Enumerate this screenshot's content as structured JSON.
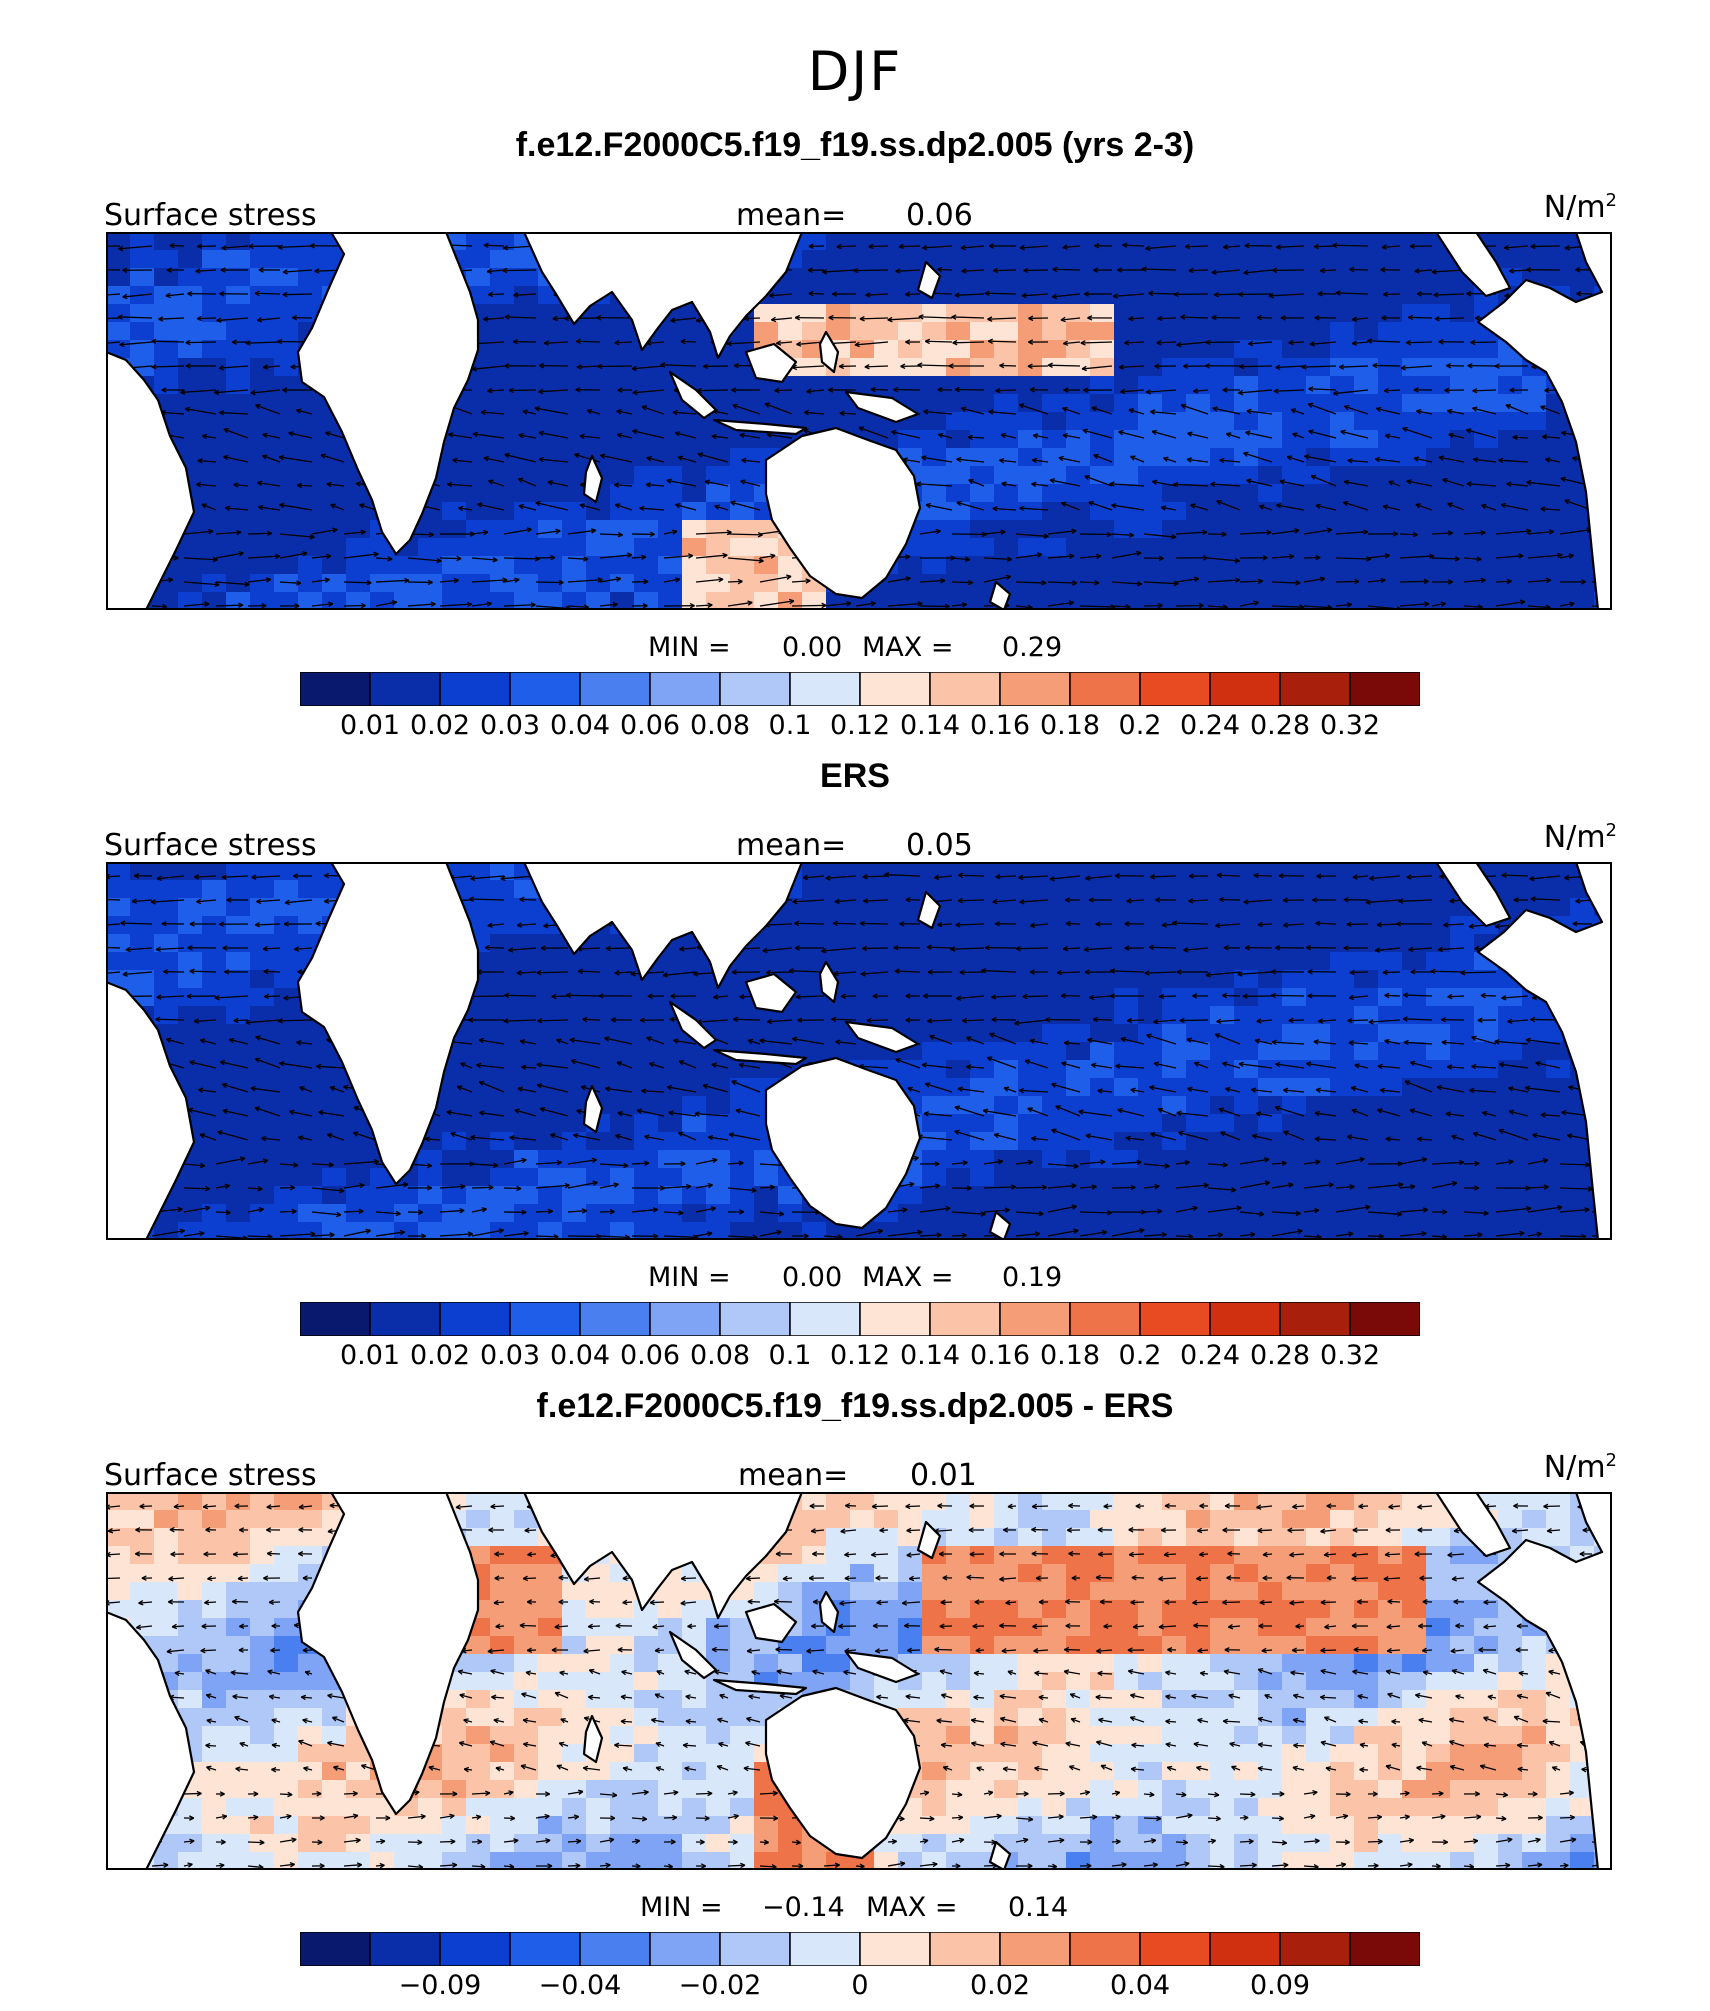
{
  "figure": {
    "season": "DJF",
    "palette": [
      "#08196e",
      "#0a2ea9",
      "#0c3fd0",
      "#1f5ee8",
      "#4a7ff0",
      "#7fa3f5",
      "#b0c8f8",
      "#d9e7fb",
      "#fde4d4",
      "#fbc3a7",
      "#f59d77",
      "#ef7348",
      "#e84a22",
      "#d02f10",
      "#a8200c",
      "#7a0a08"
    ],
    "land_color": "#ffffff"
  },
  "panels": [
    {
      "title": "f.e12.F2000C5.f19_f19.ss.dp2.005 (yrs 2-3)",
      "variable": "Surface stress",
      "mean_label": "mean=",
      "mean_value": "0.06",
      "units_base": "N/m",
      "units_exp": "2",
      "min_label": "MIN =",
      "min_value": "0.00",
      "max_label": "MAX =",
      "max_value": "0.29",
      "colorbar_ticks": [
        "0.01",
        "0.02",
        "0.03",
        "0.04",
        "0.06",
        "0.08",
        "0.1",
        "0.12",
        "0.14",
        "0.16",
        "0.18",
        "0.2",
        "0.24",
        "0.28",
        "0.32"
      ]
    },
    {
      "title": "ERS",
      "variable": "Surface stress",
      "mean_label": "mean=",
      "mean_value": "0.05",
      "units_base": "N/m",
      "units_exp": "2",
      "min_label": "MIN =",
      "min_value": "0.00",
      "max_label": "MAX =",
      "max_value": "0.19",
      "colorbar_ticks": [
        "0.01",
        "0.02",
        "0.03",
        "0.04",
        "0.06",
        "0.08",
        "0.1",
        "0.12",
        "0.14",
        "0.16",
        "0.18",
        "0.2",
        "0.24",
        "0.28",
        "0.32"
      ]
    },
    {
      "title": "f.e12.F2000C5.f19_f19.ss.dp2.005 - ERS",
      "variable": "Surface stress",
      "mean_label": "mean=",
      "mean_value": "0.01",
      "units_base": "N/m",
      "units_exp": "2",
      "min_label": "MIN =",
      "min_value": "−0.14",
      "max_label": "MAX =",
      "max_value": "0.14",
      "colorbar_ticks": [
        "−0.09",
        "−0.04",
        "−0.02",
        "0",
        "0.02",
        "0.04",
        "0.09"
      ]
    }
  ]
}
